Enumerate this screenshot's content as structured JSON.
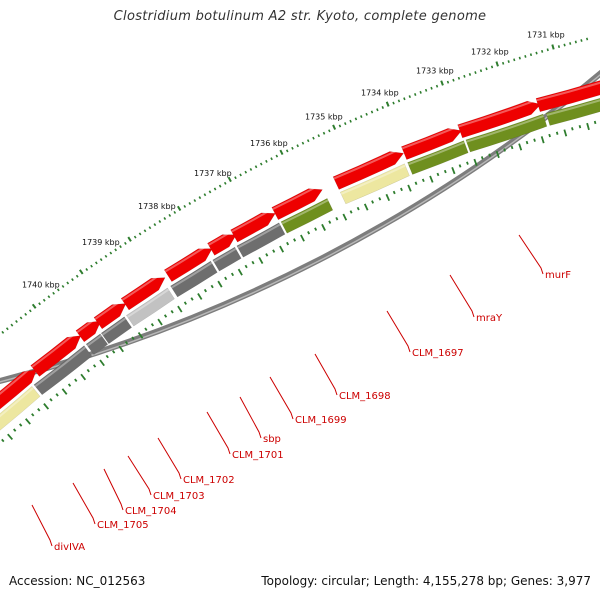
{
  "title": "Clostridium botulinum A2 str. Kyoto, complete genome",
  "footer": {
    "accession": "Accession: NC_012563",
    "summary": "Topology: circular; Length: 4,155,278 bp; Genes: 3,977"
  },
  "colors": {
    "backbone": "#7d7d7d",
    "cds_forward": "#ee0000",
    "reverse_olive": "#6f8f1e",
    "reverse_grey": "#6e6e6e",
    "reverse_light_grey": "#c2c2c2",
    "reverse_pale_yellow": "#ede7a0",
    "tick": "#2e7d2e",
    "label": "#cc0000"
  },
  "ticks": [
    {
      "label": "1731 kbp"
    },
    {
      "label": "1732 kbp"
    },
    {
      "label": "1733 kbp"
    },
    {
      "label": "1734 kbp"
    },
    {
      "label": "1735 kbp"
    },
    {
      "label": "1736 kbp"
    },
    {
      "label": "1737 kbp"
    },
    {
      "label": "1738 kbp"
    },
    {
      "label": "1739 kbp"
    },
    {
      "label": "1740 kbp"
    }
  ],
  "genes": [
    {
      "name": "murF"
    },
    {
      "name": "mraY"
    },
    {
      "name": "CLM_1697"
    },
    {
      "name": "CLM_1698"
    },
    {
      "name": "CLM_1699"
    },
    {
      "name": "sbp"
    },
    {
      "name": "CLM_1701"
    },
    {
      "name": "CLM_1702"
    },
    {
      "name": "CLM_1703"
    },
    {
      "name": "CLM_1704"
    },
    {
      "name": "CLM_1705"
    },
    {
      "name": "divIVA"
    }
  ]
}
